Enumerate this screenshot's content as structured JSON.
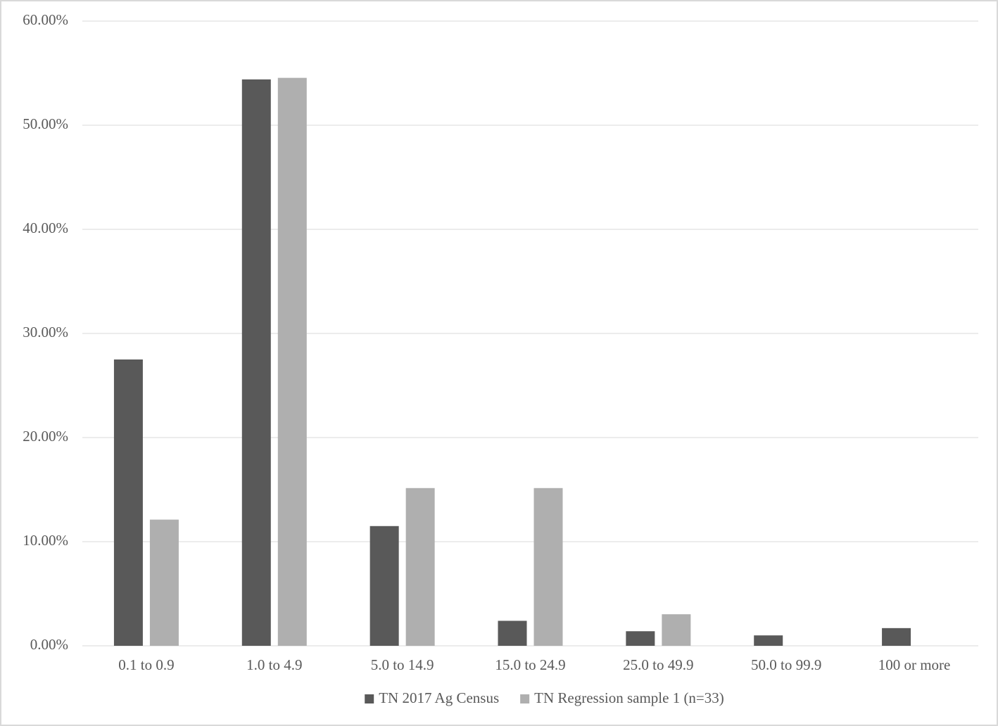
{
  "chart_data": {
    "type": "bar",
    "categories": [
      "0.1 to 0.9",
      "1.0 to 4.9",
      "5.0 to 14.9",
      "15.0 to 24.9",
      "25.0 to 49.9",
      "50.0 to 99.9",
      "100 or more"
    ],
    "series": [
      {
        "name": "TN 2017 Ag Census",
        "color": "#595959",
        "values": [
          27.5,
          54.4,
          11.5,
          2.4,
          1.4,
          1.0,
          1.7
        ]
      },
      {
        "name": "TN Regression sample 1 (n=33)",
        "color": "#afafaf",
        "values": [
          12.12,
          54.55,
          15.15,
          15.15,
          3.03,
          0,
          0
        ]
      }
    ],
    "ylim": [
      0,
      60
    ],
    "yticks": [
      {
        "value": 0,
        "label": "0.00%"
      },
      {
        "value": 10,
        "label": "10.00%"
      },
      {
        "value": 20,
        "label": "20.00%"
      },
      {
        "value": 30,
        "label": "30.00%"
      },
      {
        "value": 40,
        "label": "40.00%"
      },
      {
        "value": 50,
        "label": "50.00%"
      },
      {
        "value": 60,
        "label": "60.00%"
      }
    ],
    "grid": true,
    "legend": "bottom"
  }
}
